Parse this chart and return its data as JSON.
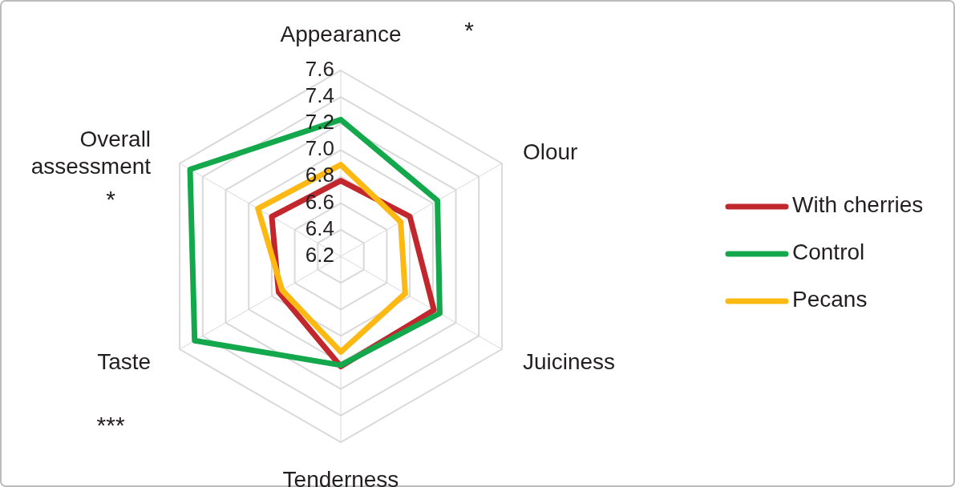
{
  "chart_data": {
    "type": "radar",
    "categories": [
      "Appearance",
      "Olour",
      "Juiciness",
      "Tenderness",
      "Taste",
      "Overall assessment"
    ],
    "series": [
      {
        "name": "With cherries",
        "color": "#c1272d",
        "values": [
          6.77,
          6.8,
          7.01,
          7.03,
          6.74,
          6.8
        ]
      },
      {
        "name": "Control",
        "color": "#13a84b",
        "values": [
          7.23,
          7.04,
          7.06,
          7.02,
          7.47,
          7.51
        ]
      },
      {
        "name": "Pecans",
        "color": "#fdb913",
        "values": [
          6.89,
          6.72,
          6.76,
          6.92,
          6.71,
          6.92
        ]
      }
    ],
    "ylim": [
      6.2,
      7.6
    ],
    "yticks": [
      6.2,
      6.4,
      6.6,
      6.8,
      {
        "value": 7,
        "label": "7.0"
      },
      7.2,
      7.4,
      7.6
    ],
    "grid": true,
    "legend": "right",
    "annotations": [
      {
        "text": "*",
        "x": "Appearance"
      },
      {
        "text": "*",
        "x": "Overall assessment"
      },
      {
        "text": "***",
        "x": "Taste"
      }
    ]
  }
}
